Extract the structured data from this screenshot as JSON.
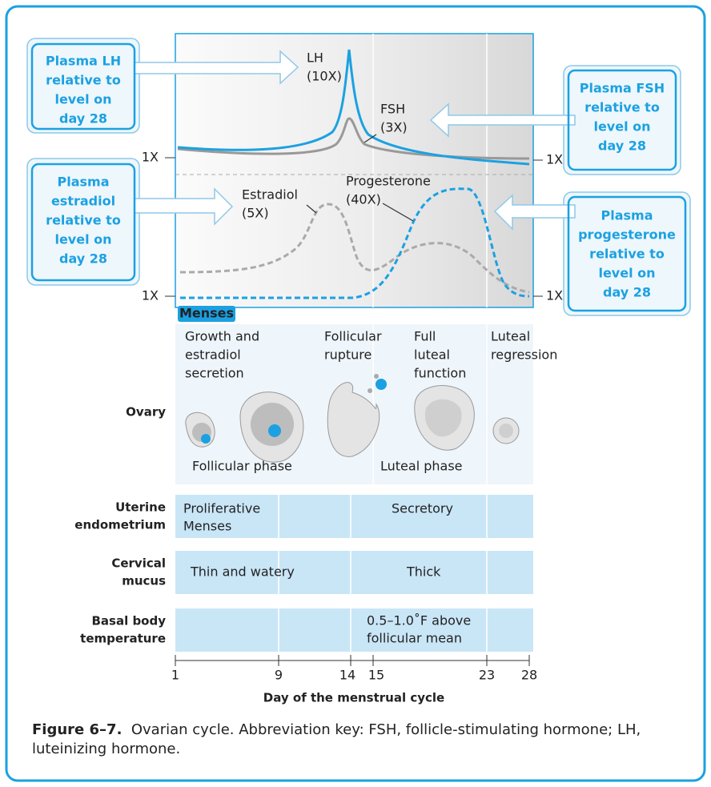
{
  "callouts": [
    [
      "Plasma LH",
      "relative to",
      "level on",
      "day 28"
    ],
    [
      "Plasma FSH",
      "relative to",
      "level on",
      "day 28"
    ],
    [
      "Plasma",
      "estradiol",
      "relative to",
      "level on",
      "day 28"
    ],
    [
      "Plasma",
      "progesterone",
      "relative to",
      "level on",
      "day 28"
    ]
  ],
  "hormones": [
    {
      "name": "LH",
      "level": "(10X)"
    },
    {
      "name": "FSH",
      "level": "(3X)"
    },
    {
      "name": "Estradiol",
      "level": "(5X)"
    },
    {
      "name": "Progesterone",
      "level": "(40X)"
    }
  ],
  "baseline_labels": [
    "1X",
    "1X",
    "1X",
    "1X"
  ],
  "menses": "Menses",
  "ovary": {
    "label": "Ovary",
    "stages": [
      [
        "Growth and",
        "estradiol",
        "secretion"
      ],
      [
        "Follicular",
        "rupture"
      ],
      [
        "Full",
        "luteal",
        "function"
      ],
      [
        "Luteal",
        "regression"
      ]
    ],
    "phases": [
      "Follicular phase",
      "Luteal phase"
    ]
  },
  "rows": [
    {
      "label": [
        "Uterine",
        "endometrium"
      ],
      "cells": [
        [
          "Proliferative",
          "Menses"
        ],
        [
          "Secretory"
        ]
      ]
    },
    {
      "label": [
        "Cervical",
        "mucus"
      ],
      "cells": [
        [
          "Thin and watery"
        ],
        [
          "Thick"
        ]
      ]
    },
    {
      "label": [
        "Basal body",
        "temperature"
      ],
      "cells": [
        [
          "0.5–1.0˚F above",
          "follicular mean"
        ]
      ]
    }
  ],
  "x_axis": {
    "ticks": [
      1,
      9,
      14,
      15,
      23,
      28
    ],
    "label": "Day of the menstrual cycle"
  },
  "caption": {
    "label": "Figure 6–7.",
    "text": "Ovarian cycle. Abbreviation key: FSH, follicle-stimulating hormone; LH, luteinizing hormone."
  }
}
